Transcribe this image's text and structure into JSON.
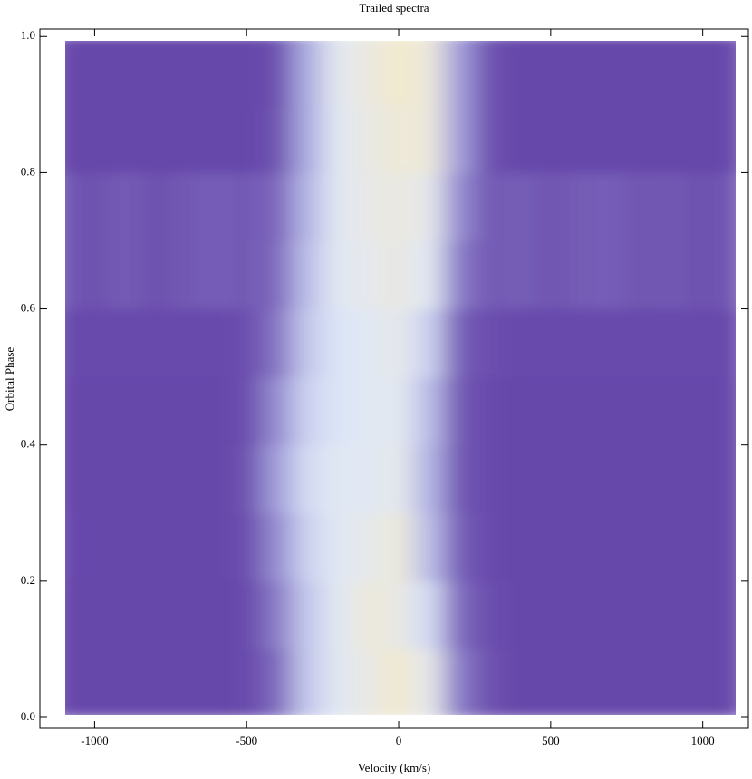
{
  "chart_data": {
    "type": "heatmap",
    "title": "Trailed spectra",
    "x_label": "Velocity (km/s)",
    "y_label": "Orbital Phase",
    "x": [
      -1100,
      -1000,
      -900,
      -800,
      -700,
      -600,
      -500,
      -400,
      -300,
      -200,
      -100,
      0,
      100,
      200,
      300,
      400,
      500,
      600,
      700,
      800,
      900,
      1000,
      1100
    ],
    "y": [
      0.05,
      0.15,
      0.25,
      0.35,
      0.45,
      0.55,
      0.65,
      0.75,
      0.85,
      0.95
    ],
    "z": [
      [
        0.05,
        0.05,
        0.05,
        0.05,
        0.05,
        0.05,
        0.06,
        0.15,
        0.5,
        0.7,
        0.8,
        0.92,
        0.75,
        0.2,
        0.08,
        0.05,
        0.05,
        0.05,
        0.05,
        0.05,
        0.05,
        0.05,
        0.05
      ],
      [
        0.05,
        0.05,
        0.05,
        0.05,
        0.05,
        0.05,
        0.06,
        0.2,
        0.5,
        0.7,
        0.85,
        0.8,
        0.6,
        0.15,
        0.07,
        0.05,
        0.05,
        0.05,
        0.05,
        0.05,
        0.05,
        0.05,
        0.05
      ],
      [
        0.06,
        0.05,
        0.05,
        0.05,
        0.05,
        0.05,
        0.07,
        0.25,
        0.55,
        0.7,
        0.75,
        0.85,
        0.45,
        0.12,
        0.06,
        0.05,
        0.05,
        0.05,
        0.05,
        0.05,
        0.05,
        0.05,
        0.05
      ],
      [
        0.05,
        0.05,
        0.05,
        0.05,
        0.05,
        0.05,
        0.08,
        0.3,
        0.6,
        0.7,
        0.7,
        0.75,
        0.4,
        0.1,
        0.06,
        0.05,
        0.05,
        0.05,
        0.05,
        0.05,
        0.05,
        0.05,
        0.05
      ],
      [
        0.05,
        0.05,
        0.05,
        0.05,
        0.05,
        0.05,
        0.07,
        0.25,
        0.55,
        0.65,
        0.7,
        0.72,
        0.45,
        0.1,
        0.06,
        0.05,
        0.05,
        0.05,
        0.05,
        0.05,
        0.05,
        0.05,
        0.05
      ],
      [
        0.06,
        0.06,
        0.06,
        0.06,
        0.06,
        0.06,
        0.07,
        0.18,
        0.5,
        0.65,
        0.7,
        0.75,
        0.55,
        0.12,
        0.07,
        0.06,
        0.06,
        0.06,
        0.06,
        0.06,
        0.06,
        0.06,
        0.06
      ],
      [
        0.1,
        0.08,
        0.11,
        0.08,
        0.1,
        0.12,
        0.1,
        0.15,
        0.45,
        0.7,
        0.75,
        0.8,
        0.7,
        0.2,
        0.1,
        0.12,
        0.09,
        0.11,
        0.12,
        0.09,
        0.1,
        0.08,
        0.1
      ],
      [
        0.1,
        0.08,
        0.11,
        0.08,
        0.1,
        0.12,
        0.1,
        0.14,
        0.4,
        0.7,
        0.78,
        0.82,
        0.75,
        0.25,
        0.1,
        0.12,
        0.09,
        0.11,
        0.12,
        0.09,
        0.1,
        0.08,
        0.1
      ],
      [
        0.05,
        0.05,
        0.05,
        0.05,
        0.05,
        0.05,
        0.05,
        0.08,
        0.35,
        0.7,
        0.8,
        0.88,
        0.85,
        0.3,
        0.08,
        0.05,
        0.05,
        0.05,
        0.05,
        0.05,
        0.05,
        0.05,
        0.05
      ],
      [
        0.05,
        0.05,
        0.05,
        0.05,
        0.05,
        0.05,
        0.05,
        0.07,
        0.35,
        0.72,
        0.82,
        0.95,
        0.85,
        0.3,
        0.08,
        0.05,
        0.05,
        0.05,
        0.05,
        0.05,
        0.05,
        0.05,
        0.05
      ]
    ],
    "colors": [
      "#5a35a0",
      "#a9a8e0",
      "#dfe8f8",
      "#f6e9c4"
    ],
    "xlim": [
      -1180,
      1150
    ],
    "ylim": [
      -0.016,
      1.011
    ],
    "xticks": [
      -1000,
      -500,
      0,
      500,
      1000
    ],
    "yticks": [
      {
        "value": 0,
        "label": "0.0"
      },
      0.2,
      0.4,
      0.6,
      0.8,
      {
        "value": 1,
        "label": "1.0"
      }
    ]
  }
}
